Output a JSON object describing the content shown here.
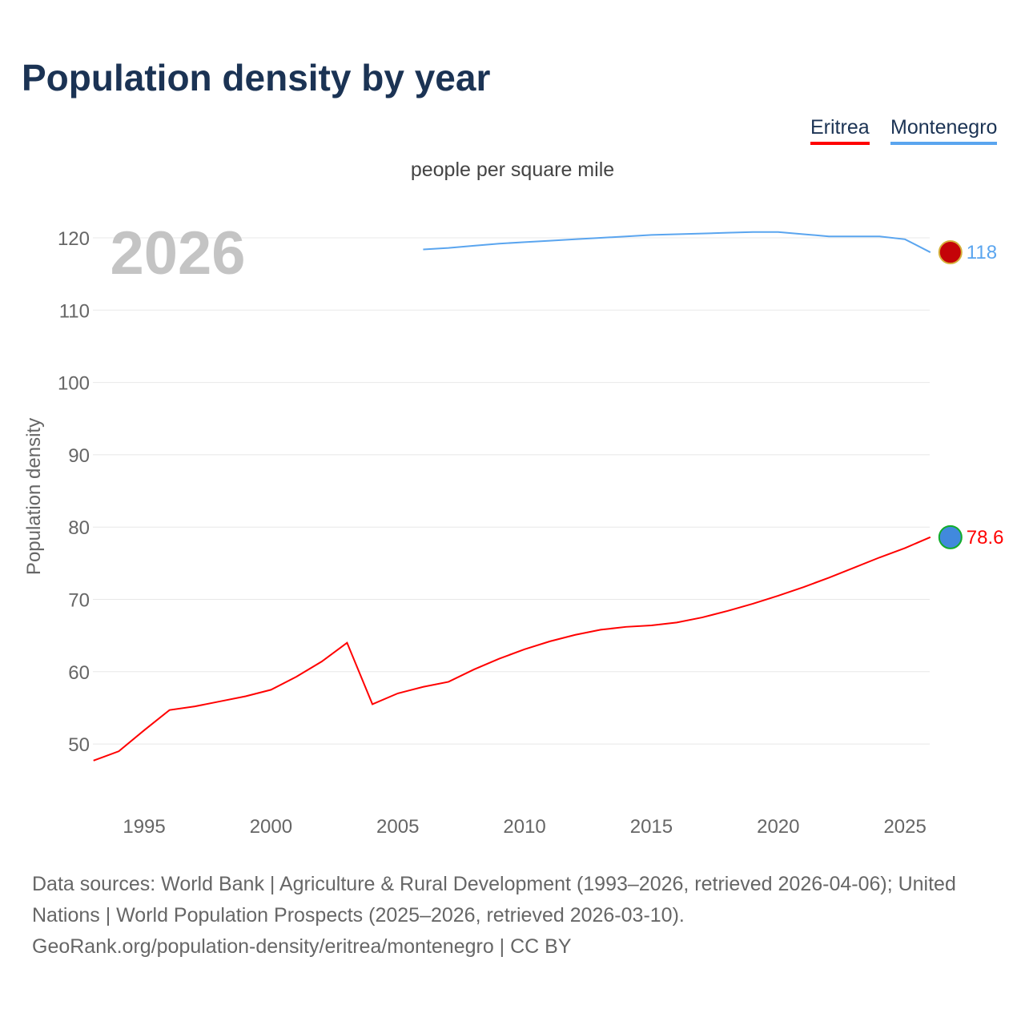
{
  "title": "Population density by year",
  "subtitle": "people per square mile",
  "year_watermark": "2026",
  "footer": {
    "line1": "Data sources: World Bank | Agriculture & Rural Development (1993–2026, retrieved 2026-04-06); United Nations | World Population Prospects (2025–2026, retrieved 2026-03-10).",
    "line2": "GeoRank.org/population-density/eritrea/montenegro | CC BY"
  },
  "chart_data": {
    "type": "line",
    "title": "Population density by year",
    "ylabel": "Population density",
    "xlabel": "",
    "xlim": [
      1993,
      2026
    ],
    "ylim": [
      43,
      125
    ],
    "xticks": [
      1995,
      2000,
      2005,
      2010,
      2015,
      2020,
      2025
    ],
    "yticks": [
      50,
      60,
      70,
      80,
      90,
      100,
      110,
      120
    ],
    "legend": "top-right",
    "series": [
      {
        "name": "Eritrea",
        "color": "#ff0000",
        "end_label": "78.6",
        "x": [
          1993,
          1994,
          1995,
          1996,
          1997,
          1998,
          1999,
          2000,
          2001,
          2002,
          2003,
          2004,
          2005,
          2006,
          2007,
          2008,
          2009,
          2010,
          2011,
          2012,
          2013,
          2014,
          2015,
          2016,
          2017,
          2018,
          2019,
          2020,
          2021,
          2022,
          2023,
          2024,
          2025,
          2026
        ],
        "values": [
          47.7,
          49.0,
          51.9,
          54.7,
          55.2,
          55.9,
          56.6,
          57.5,
          59.3,
          61.4,
          64.0,
          55.5,
          57.0,
          57.9,
          58.6,
          60.3,
          61.8,
          63.1,
          64.2,
          65.1,
          65.8,
          66.2,
          66.4,
          66.8,
          67.5,
          68.4,
          69.4,
          70.5,
          71.7,
          73.0,
          74.4,
          75.8,
          77.1,
          78.6
        ]
      },
      {
        "name": "Montenegro",
        "color": "#5aa5ef",
        "end_label": "118",
        "x": [
          2006,
          2007,
          2008,
          2009,
          2010,
          2011,
          2012,
          2013,
          2014,
          2015,
          2016,
          2017,
          2018,
          2019,
          2020,
          2021,
          2022,
          2023,
          2024,
          2025,
          2026
        ],
        "values": [
          118.4,
          118.6,
          118.9,
          119.2,
          119.4,
          119.6,
          119.8,
          120.0,
          120.2,
          120.4,
          120.5,
          120.6,
          120.7,
          120.8,
          120.8,
          120.5,
          120.2,
          120.2,
          120.2,
          119.8,
          118.0
        ]
      }
    ]
  }
}
